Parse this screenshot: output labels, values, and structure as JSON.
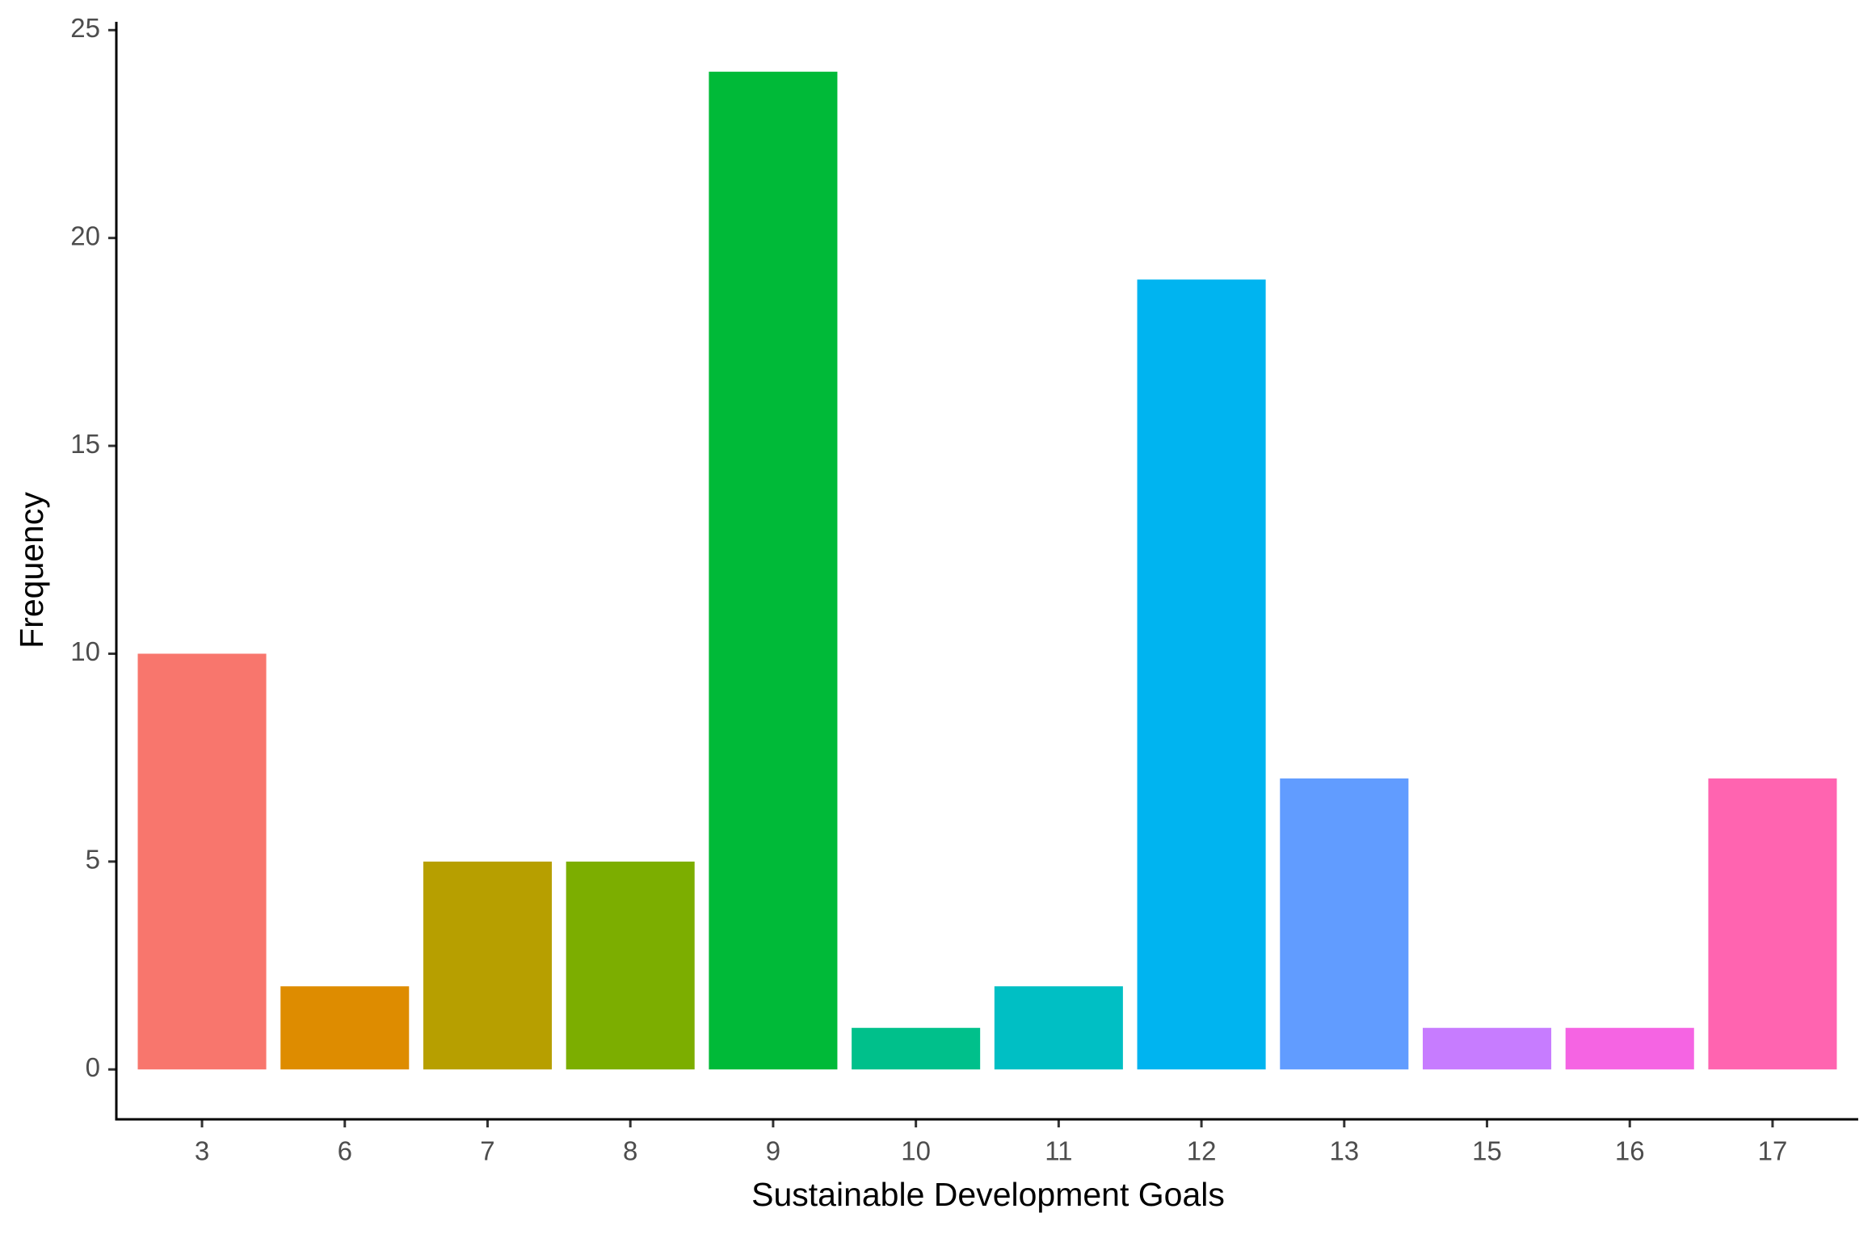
{
  "chart_data": {
    "type": "bar",
    "x_label": "Sustainable Development Goals",
    "y_label": "Frequency",
    "categories": [
      "3",
      "6",
      "7",
      "8",
      "9",
      "10",
      "11",
      "12",
      "13",
      "15",
      "16",
      "17"
    ],
    "values": [
      10,
      2,
      5,
      5,
      24,
      1,
      2,
      19,
      7,
      1,
      1,
      7
    ],
    "colors": [
      "#F8766D",
      "#DE8C00",
      "#B79F00",
      "#7CAE00",
      "#00BA38",
      "#00C08B",
      "#00BFC4",
      "#00B4F0",
      "#619CFF",
      "#C77CFF",
      "#F564E3",
      "#FF64B0"
    ],
    "ylim": [
      -1.2,
      25.2
    ],
    "yticks": [
      0,
      5,
      10,
      15,
      20,
      25
    ],
    "grid": false
  }
}
